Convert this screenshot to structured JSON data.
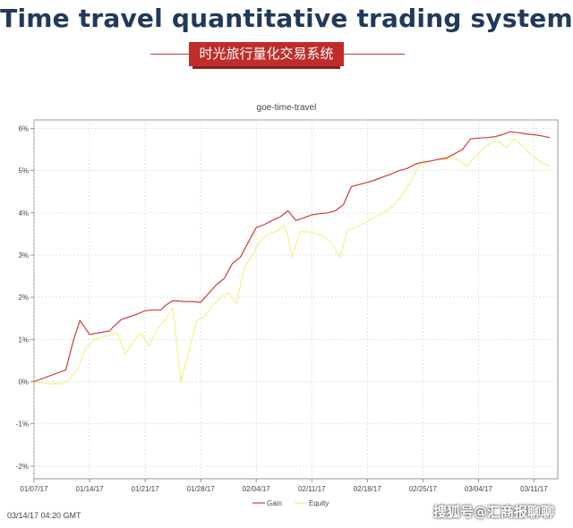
{
  "header": {
    "title": "Time travel quantitative trading system",
    "subtitle": "时光旅行量化交易系统"
  },
  "footer": {
    "timestamp": "03/14/17 04:20 GMT",
    "watermark": "搜狐号@汇商报聊聊"
  },
  "colors": {
    "gain": "#cf3b3b",
    "equity": "#f3f18a",
    "headline": "#213a5a",
    "banner": "#bf2d2a"
  },
  "chart_data": {
    "type": "line",
    "title": "goe-time-travel",
    "xlabel": "",
    "ylabel": "",
    "ylim": [
      -2.3,
      6.2
    ],
    "yticks": [
      -2,
      -1,
      0,
      1,
      2,
      3,
      4,
      5,
      6
    ],
    "ytick_labels": [
      "-2%",
      "-1%",
      "0%",
      "1%",
      "2%",
      "3%",
      "4%",
      "5%",
      "6%"
    ],
    "xlim": [
      0,
      66
    ],
    "xticks": [
      0,
      7,
      14,
      21,
      28,
      35,
      42,
      49,
      56,
      63
    ],
    "xtick_labels": [
      "01/07/17",
      "01/14/17",
      "01/21/17",
      "01/28/17",
      "02/04/17",
      "02/11/17",
      "02/18/17",
      "02/25/17",
      "03/04/17",
      "03/11/17"
    ],
    "grid": true,
    "legend": "bottom-center",
    "series": [
      {
        "name": "Gain",
        "x": [
          0,
          4,
          5,
          5.8,
          7,
          8,
          9.5,
          10,
          11,
          13,
          14,
          15,
          16,
          16.5,
          17.5,
          19,
          20,
          21,
          23,
          24,
          25,
          26,
          27,
          28,
          29,
          30,
          31,
          32,
          33,
          34,
          35,
          36,
          37,
          37.5,
          38,
          39,
          40,
          41,
          42,
          43,
          44,
          45,
          46,
          47,
          48,
          49,
          50,
          51,
          52,
          53,
          54,
          55,
          56,
          57,
          58,
          59,
          60,
          61,
          62,
          63,
          64,
          65
        ],
        "values": [
          0,
          0.28,
          1.0,
          1.45,
          1.12,
          1.15,
          1.2,
          1.3,
          1.47,
          1.6,
          1.68,
          1.7,
          1.7,
          1.8,
          1.92,
          1.9,
          1.9,
          1.88,
          2.3,
          2.45,
          2.8,
          2.95,
          3.3,
          3.65,
          3.72,
          3.82,
          3.9,
          4.05,
          3.82,
          3.88,
          3.95,
          3.98,
          4.0,
          4.02,
          4.05,
          4.2,
          4.62,
          4.67,
          4.72,
          4.78,
          4.85,
          4.92,
          5.0,
          5.05,
          5.15,
          5.2,
          5.23,
          5.27,
          5.3,
          5.4,
          5.5,
          5.75,
          5.77,
          5.78,
          5.8,
          5.85,
          5.92,
          5.9,
          5.87,
          5.85,
          5.82,
          5.78
        ]
      },
      {
        "name": "Equity",
        "x": [
          0,
          2,
          3.5,
          4.5,
          5.5,
          6.5,
          7.5,
          8.5,
          9.5,
          10.5,
          11.5,
          12.5,
          13.5,
          14.5,
          15.5,
          16.5,
          17.5,
          18.5,
          19.5,
          20.5,
          21.5,
          22.5,
          23.5,
          24.5,
          25.5,
          26.5,
          27.5,
          28.5,
          29.5,
          30.5,
          31.5,
          32,
          32.5,
          33.5,
          34.5,
          35.5,
          36.5,
          37.5,
          38.5,
          39.5,
          40.5,
          41.5,
          42.5,
          43.5,
          44.5,
          45.5,
          46.5,
          47.5,
          48.5,
          49.5,
          50.5,
          51.5,
          52.5,
          53.5,
          54.5,
          55.5,
          56.5,
          57.5,
          58.5,
          59.5,
          60.5,
          61.5,
          62.5,
          63.5,
          64.5,
          65
        ],
        "values": [
          0,
          -0.05,
          -0.05,
          0.05,
          0.3,
          0.8,
          1.0,
          1.05,
          1.1,
          1.15,
          0.65,
          0.95,
          1.15,
          0.85,
          1.25,
          1.45,
          1.75,
          0.0,
          0.7,
          1.45,
          1.55,
          1.8,
          2.0,
          2.1,
          1.85,
          2.7,
          3.0,
          3.35,
          3.5,
          3.55,
          3.7,
          3.45,
          2.95,
          3.55,
          3.55,
          3.5,
          3.45,
          3.3,
          2.95,
          3.6,
          3.65,
          3.75,
          3.85,
          3.95,
          4.05,
          4.2,
          4.45,
          4.75,
          5.1,
          5.2,
          5.25,
          5.25,
          5.3,
          5.25,
          5.1,
          5.3,
          5.5,
          5.65,
          5.7,
          5.55,
          5.75,
          5.6,
          5.4,
          5.25,
          5.15,
          5.1
        ]
      }
    ]
  }
}
